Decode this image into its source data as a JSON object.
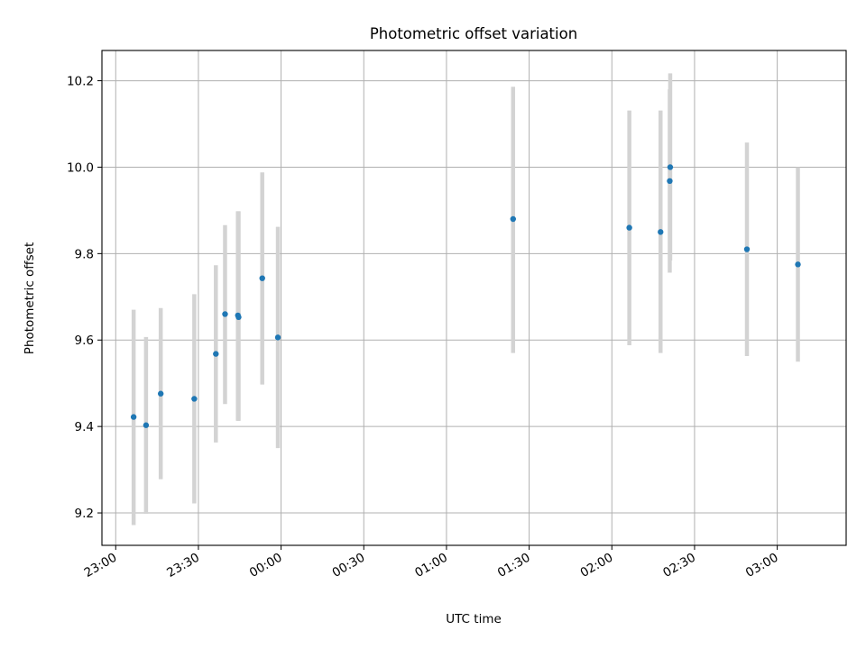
{
  "chart_data": {
    "type": "scatter",
    "title": "Photometric offset variation",
    "xlabel": "UTC time",
    "ylabel": "Photometric offset",
    "xlim": [
      "22:55",
      "03:25"
    ],
    "ylim": [
      9.125,
      10.27
    ],
    "x_ticks": [
      "23:00",
      "23:30",
      "00:00",
      "00:30",
      "01:00",
      "01:30",
      "02:00",
      "02:30",
      "03:00"
    ],
    "y_ticks": [
      9.2,
      9.4,
      9.6,
      9.8,
      10.0,
      10.2
    ],
    "y_tick_labels": [
      "9.2",
      "9.4",
      "9.6",
      "9.8",
      "10.0",
      "10.2"
    ],
    "grid": true,
    "colors": {
      "points": "#1f77b4",
      "error_bars": "#d3d3d3",
      "grid": "#b0b0b0"
    },
    "points": [
      {
        "x": "23:06:30",
        "y": 9.422,
        "y_low": 9.172,
        "y_high": 9.67
      },
      {
        "x": "23:11:00",
        "y": 9.403,
        "y_low": 9.198,
        "y_high": 9.607
      },
      {
        "x": "23:16:20",
        "y": 9.476,
        "y_low": 9.278,
        "y_high": 9.674
      },
      {
        "x": "23:28:30",
        "y": 9.464,
        "y_low": 9.222,
        "y_high": 9.706
      },
      {
        "x": "23:36:20",
        "y": 9.568,
        "y_low": 9.363,
        "y_high": 9.773
      },
      {
        "x": "23:39:40",
        "y": 9.66,
        "y_low": 9.452,
        "y_high": 9.866
      },
      {
        "x": "23:44:20",
        "y": 9.657,
        "y_low": 9.413,
        "y_high": 9.898
      },
      {
        "x": "23:44:35",
        "y": 9.653,
        "y_low": 9.413,
        "y_high": 9.898
      },
      {
        "x": "23:53:10",
        "y": 9.743,
        "y_low": 9.497,
        "y_high": 9.988
      },
      {
        "x": "23:58:50",
        "y": 9.606,
        "y_low": 9.35,
        "y_high": 9.862
      },
      {
        "x": "01:24:10",
        "y": 9.88,
        "y_low": 9.57,
        "y_high": 10.186
      },
      {
        "x": "02:06:20",
        "y": 9.86,
        "y_low": 9.588,
        "y_high": 10.131
      },
      {
        "x": "02:17:40",
        "y": 9.85,
        "y_low": 9.57,
        "y_high": 10.131
      },
      {
        "x": "02:21:10",
        "y": 10.0,
        "y_low": 9.784,
        "y_high": 10.217
      },
      {
        "x": "02:21:00",
        "y": 9.968,
        "y_low": 9.756,
        "y_high": 10.18
      },
      {
        "x": "02:49:00",
        "y": 9.81,
        "y_low": 9.563,
        "y_high": 10.057
      },
      {
        "x": "03:07:30",
        "y": 9.775,
        "y_low": 9.55,
        "y_high": 10.0
      }
    ]
  }
}
